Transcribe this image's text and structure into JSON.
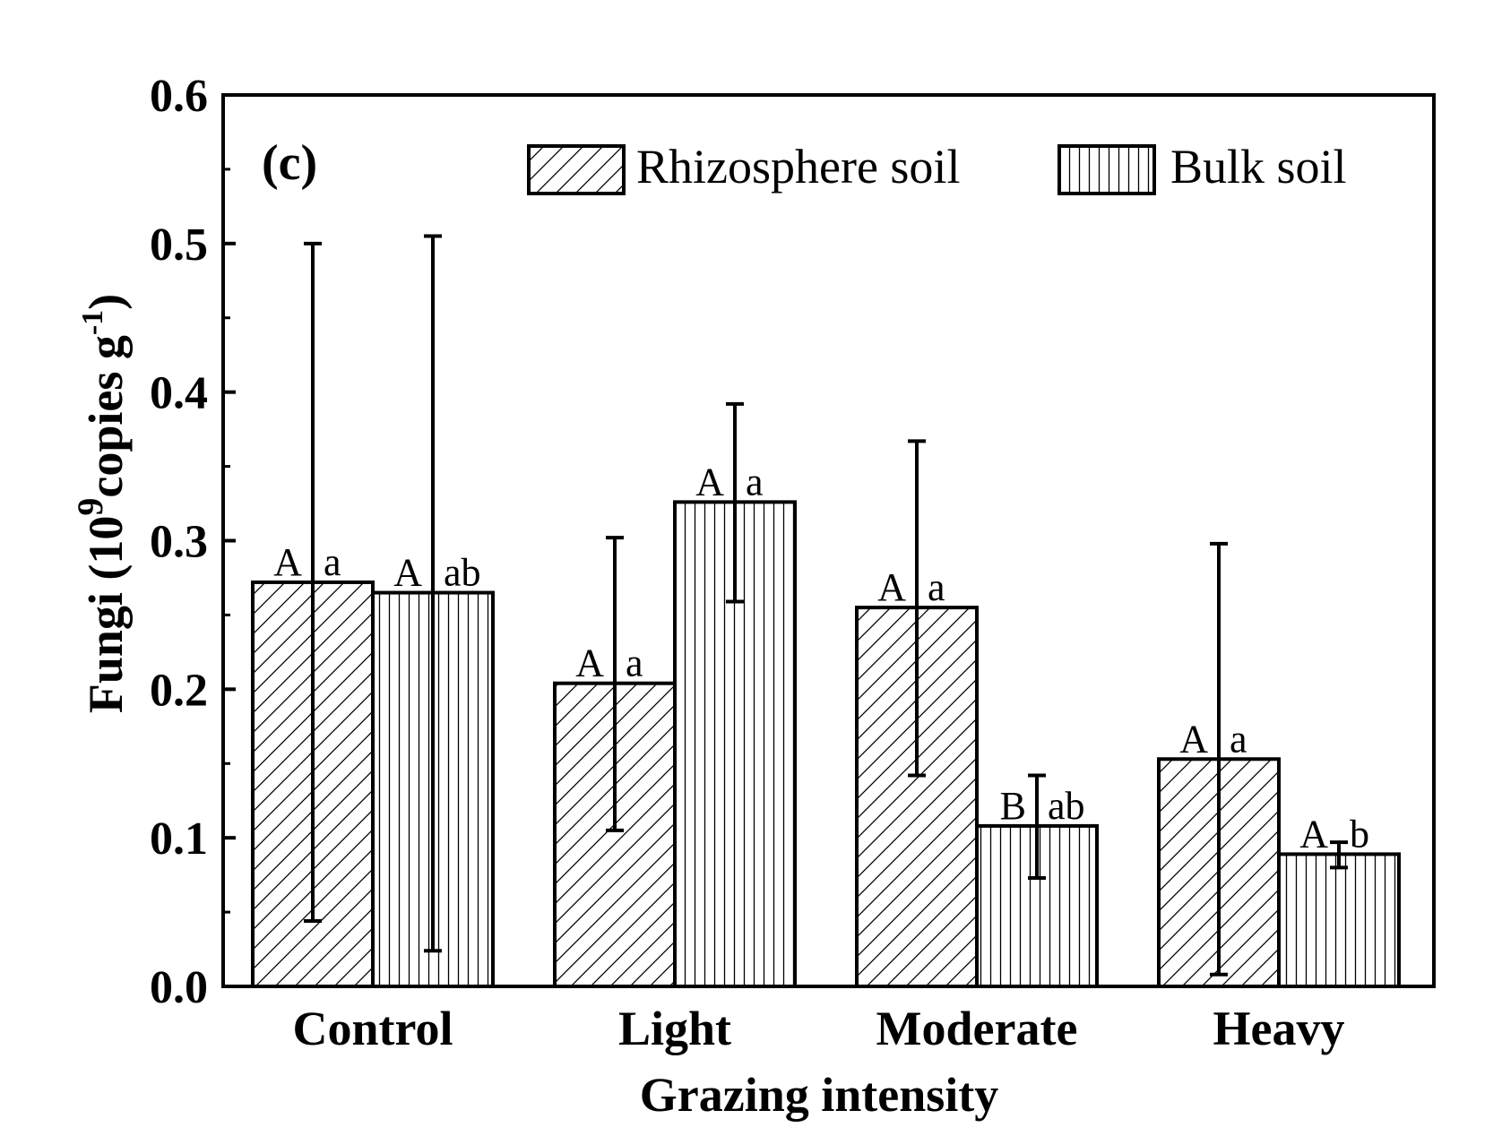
{
  "chart_data": {
    "type": "bar",
    "panel_label": "(c)",
    "xlabel": "Grazing intensity",
    "ylabel_main": "Fungi (10",
    "ylabel_exp": "9",
    "ylabel_mid": "copies g",
    "ylabel_exp2": "-1",
    "ylabel_end": ")",
    "ylim": [
      0,
      0.6
    ],
    "yticks": [
      "0.0",
      "0.1",
      "0.2",
      "0.3",
      "0.4",
      "0.5",
      "0.6"
    ],
    "categories": [
      "Control",
      "Light",
      "Moderate",
      "Heavy"
    ],
    "legend_position": "top",
    "series": [
      {
        "name": "Rhizosphere soil",
        "pattern": "diagonal-hatch",
        "values": [
          0.272,
          0.204,
          0.255,
          0.153
        ],
        "err_low": [
          0.044,
          0.105,
          0.142,
          0.008
        ],
        "err_high": [
          0.5,
          0.302,
          0.367,
          0.298
        ],
        "sig_upper": [
          "A",
          "A",
          "A",
          "A"
        ],
        "sig_lower": [
          "a",
          "a",
          "a",
          "a"
        ]
      },
      {
        "name": "Bulk soil",
        "pattern": "vertical-hatch",
        "values": [
          0.265,
          0.326,
          0.108,
          0.089
        ],
        "err_low": [
          0.024,
          0.259,
          0.073,
          0.08
        ],
        "err_high": [
          0.505,
          0.392,
          0.142,
          0.097
        ],
        "sig_upper": [
          "A",
          "A",
          "B",
          "A"
        ],
        "sig_lower": [
          "ab",
          "a",
          "ab",
          "b"
        ]
      }
    ],
    "colors": {
      "bar_fill": "#ffffff",
      "stroke": "#000000"
    }
  }
}
